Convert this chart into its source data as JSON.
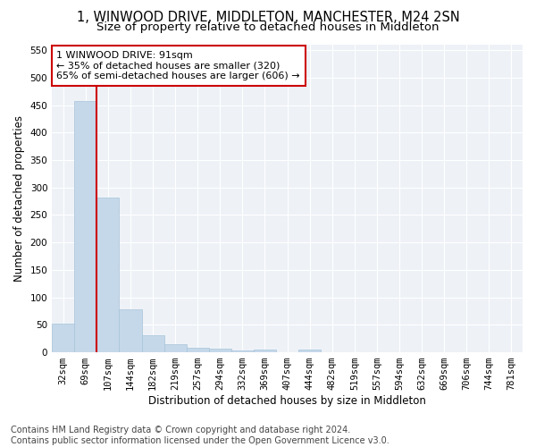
{
  "title": "1, WINWOOD DRIVE, MIDDLETON, MANCHESTER, M24 2SN",
  "subtitle": "Size of property relative to detached houses in Middleton",
  "xlabel": "Distribution of detached houses by size in Middleton",
  "ylabel": "Number of detached properties",
  "categories": [
    "32sqm",
    "69sqm",
    "107sqm",
    "144sqm",
    "182sqm",
    "219sqm",
    "257sqm",
    "294sqm",
    "332sqm",
    "369sqm",
    "407sqm",
    "444sqm",
    "482sqm",
    "519sqm",
    "557sqm",
    "594sqm",
    "632sqm",
    "669sqm",
    "706sqm",
    "744sqm",
    "781sqm"
  ],
  "values": [
    53,
    457,
    282,
    78,
    31,
    14,
    9,
    7,
    4,
    5,
    0,
    5,
    0,
    0,
    0,
    0,
    0,
    0,
    0,
    0,
    0
  ],
  "bar_color": "#c5d8ea",
  "bar_edge_color": "#a8c4d8",
  "vline_color": "#cc0000",
  "vline_x_index": 1.5,
  "annotation_box_text": "1 WINWOOD DRIVE: 91sqm\n← 35% of detached houses are smaller (320)\n65% of semi-detached houses are larger (606) →",
  "annotation_box_color": "#cc0000",
  "annotation_box_bg": "#ffffff",
  "ylim": [
    0,
    560
  ],
  "yticks": [
    0,
    50,
    100,
    150,
    200,
    250,
    300,
    350,
    400,
    450,
    500,
    550
  ],
  "footer_line1": "Contains HM Land Registry data © Crown copyright and database right 2024.",
  "footer_line2": "Contains public sector information licensed under the Open Government Licence v3.0.",
  "bg_color": "#eef2f7",
  "title_fontsize": 10.5,
  "subtitle_fontsize": 9.5,
  "axis_label_fontsize": 8.5,
  "tick_fontsize": 7.5,
  "annotation_fontsize": 8,
  "footer_fontsize": 7
}
